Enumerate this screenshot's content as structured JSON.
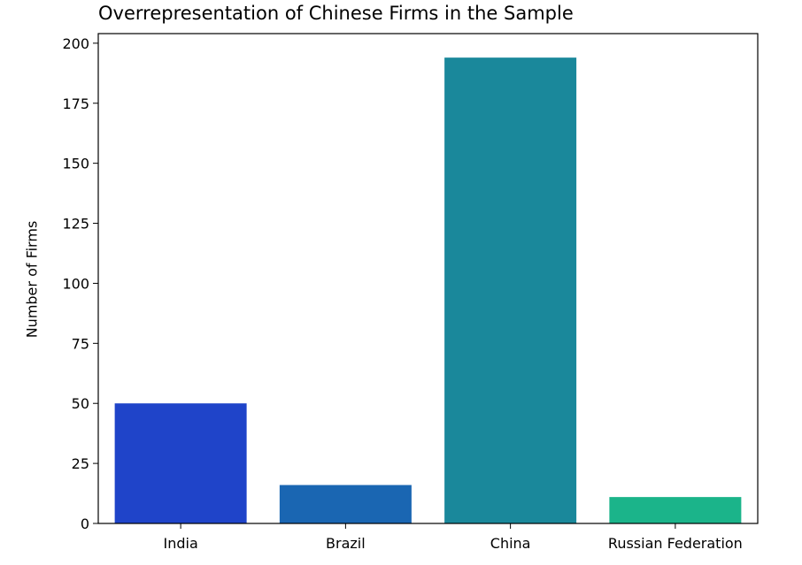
{
  "chart_data": {
    "type": "bar",
    "title": "Overrepresentation of Chinese Firms in the Sample",
    "xlabel": "",
    "ylabel": "Number of Firms",
    "categories": [
      "India",
      "Brazil",
      "China",
      "Russian Federation"
    ],
    "values": [
      50,
      16,
      194,
      11
    ],
    "colors": [
      "#1f44c9",
      "#1a66b2",
      "#1a889b",
      "#1bb48a"
    ],
    "ylim": [
      0,
      204
    ],
    "yticks": [
      0,
      25,
      50,
      75,
      100,
      125,
      150,
      175,
      200
    ],
    "grid": false,
    "legend": "none"
  }
}
